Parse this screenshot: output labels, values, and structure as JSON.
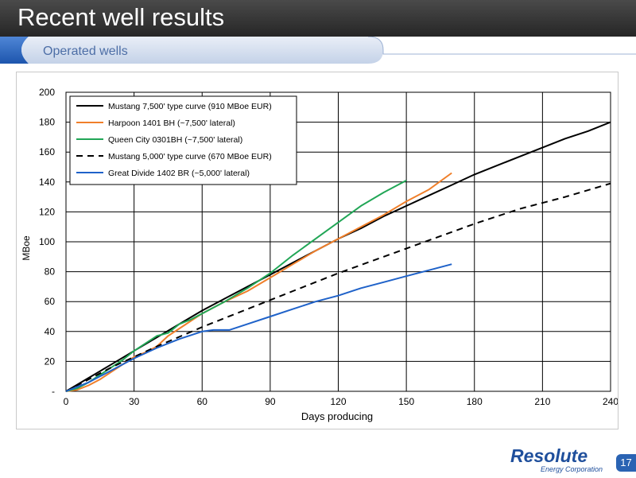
{
  "header": {
    "title": "Recent well results",
    "subtitle": "Operated wells"
  },
  "logo": {
    "name": "Resolute",
    "tagline": "Energy Corporation"
  },
  "page_number": "17",
  "colors": {
    "accent_blue": "#2a63b3",
    "title_bar": "#333333"
  },
  "chart_data": {
    "type": "line",
    "xlabel": "Days producing",
    "ylabel": "MBoe",
    "xlim": [
      0,
      240
    ],
    "ylim": [
      0,
      200
    ],
    "x_ticks": [
      "0",
      "30",
      "60",
      "90",
      "120",
      "150",
      "180",
      "210",
      "240"
    ],
    "y_ticks": [
      "-",
      "20",
      "40",
      "60",
      "80",
      "100",
      "120",
      "140",
      "160",
      "180",
      "200"
    ],
    "grid": true,
    "legend_position": "top-left",
    "series": [
      {
        "name": "Mustang 7,500' type curve (910 MBoe EUR)",
        "color": "#000000",
        "dash": "solid",
        "x": [
          0,
          10,
          20,
          30,
          40,
          50,
          60,
          70,
          80,
          90,
          100,
          110,
          120,
          130,
          140,
          150,
          160,
          170,
          180,
          190,
          200,
          210,
          220,
          230,
          240
        ],
        "y": [
          0,
          9,
          18,
          27,
          36,
          45,
          54,
          62,
          70,
          78,
          86,
          94,
          102,
          109,
          117,
          124,
          131,
          138,
          145,
          151,
          157,
          163,
          169,
          174,
          180
        ]
      },
      {
        "name": "Harpoon 1401 BH (~7,500' lateral)",
        "color": "#f07f2a",
        "dash": "solid",
        "x": [
          0,
          5,
          10,
          15,
          20,
          25,
          30,
          35,
          40,
          45,
          50,
          60,
          70,
          80,
          90,
          100,
          110,
          120,
          130,
          140,
          150,
          160,
          170
        ],
        "y": [
          0,
          1,
          4,
          8,
          13,
          18,
          23,
          26,
          30,
          37,
          42,
          52,
          60,
          67,
          76,
          85,
          94,
          102,
          110,
          118,
          127,
          135,
          146
        ]
      },
      {
        "name": "Queen City 0301BH (~7,500' lateral)",
        "color": "#21a656",
        "dash": "solid",
        "x": [
          0,
          5,
          10,
          15,
          20,
          25,
          30,
          35,
          40,
          45,
          50,
          55,
          60,
          70,
          80,
          90,
          100,
          110,
          120,
          130,
          140,
          150
        ],
        "y": [
          0,
          2,
          6,
          11,
          16,
          21,
          27,
          32,
          37,
          39,
          45,
          48,
          52,
          60,
          69,
          79,
          91,
          102,
          113,
          124,
          133,
          141
        ]
      },
      {
        "name": "Mustang 5,000' type curve (670 MBoe EUR)",
        "color": "#000000",
        "dash": "dashed",
        "x": [
          0,
          20,
          40,
          60,
          80,
          100,
          120,
          140,
          160,
          180,
          200,
          220,
          240
        ],
        "y": [
          0,
          16,
          30,
          43,
          55,
          67,
          79,
          90,
          101,
          112,
          122,
          130,
          139
        ]
      },
      {
        "name": "Great Divide 1402 BR (~5,000' lateral)",
        "color": "#1f62c9",
        "dash": "solid",
        "x": [
          0,
          10,
          20,
          30,
          40,
          50,
          60,
          65,
          70,
          72,
          80,
          90,
          100,
          110,
          120,
          130,
          140,
          150,
          160,
          170
        ],
        "y": [
          0,
          6,
          14,
          22,
          29,
          35,
          40,
          41,
          41,
          41,
          45,
          50,
          55,
          60,
          64,
          69,
          73,
          77,
          81,
          85
        ]
      }
    ]
  }
}
